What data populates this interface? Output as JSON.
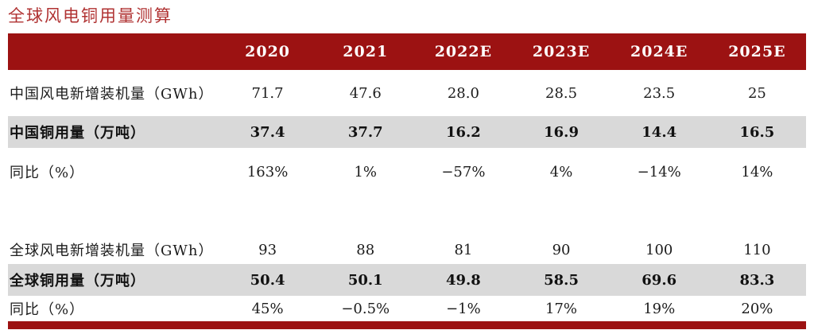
{
  "title": "全球风电铜用量测算",
  "colors": {
    "accent_red": "#9c1212",
    "title_red": "#b03232",
    "row_highlight_gray": "#d9d9d9",
    "header_text": "#ffffff",
    "body_text": "#1c1c1c"
  },
  "table": {
    "columns": [
      "",
      "2020",
      "2021",
      "2022E",
      "2023E",
      "2024E",
      "2025E"
    ],
    "rows": [
      {
        "label": "中国风电新增装机量（GWh）",
        "values": [
          "71.7",
          "47.6",
          "28.0",
          "28.5",
          "23.5",
          "25"
        ]
      },
      {
        "label": "中国铜用量（万吨）",
        "values": [
          "37.4",
          "37.7",
          "16.2",
          "16.9",
          "14.4",
          "16.5"
        ]
      },
      {
        "label": "同比（%）",
        "values": [
          "163%",
          "1%",
          "−57%",
          "4%",
          "−14%",
          "14%"
        ]
      },
      {
        "label": "",
        "values": [
          "",
          "",
          "",
          "",
          "",
          ""
        ]
      },
      {
        "label": "全球风电新增装机量（GWh）",
        "values": [
          "93",
          "88",
          "81",
          "90",
          "100",
          "110"
        ]
      },
      {
        "label": "全球铜用量（万吨）",
        "values": [
          "50.4",
          "50.1",
          "49.8",
          "58.5",
          "69.6",
          "83.3"
        ]
      },
      {
        "label": "同比（%）",
        "values": [
          "45%",
          "−0.5%",
          "−1%",
          "17%",
          "19%",
          "20%"
        ]
      }
    ]
  }
}
